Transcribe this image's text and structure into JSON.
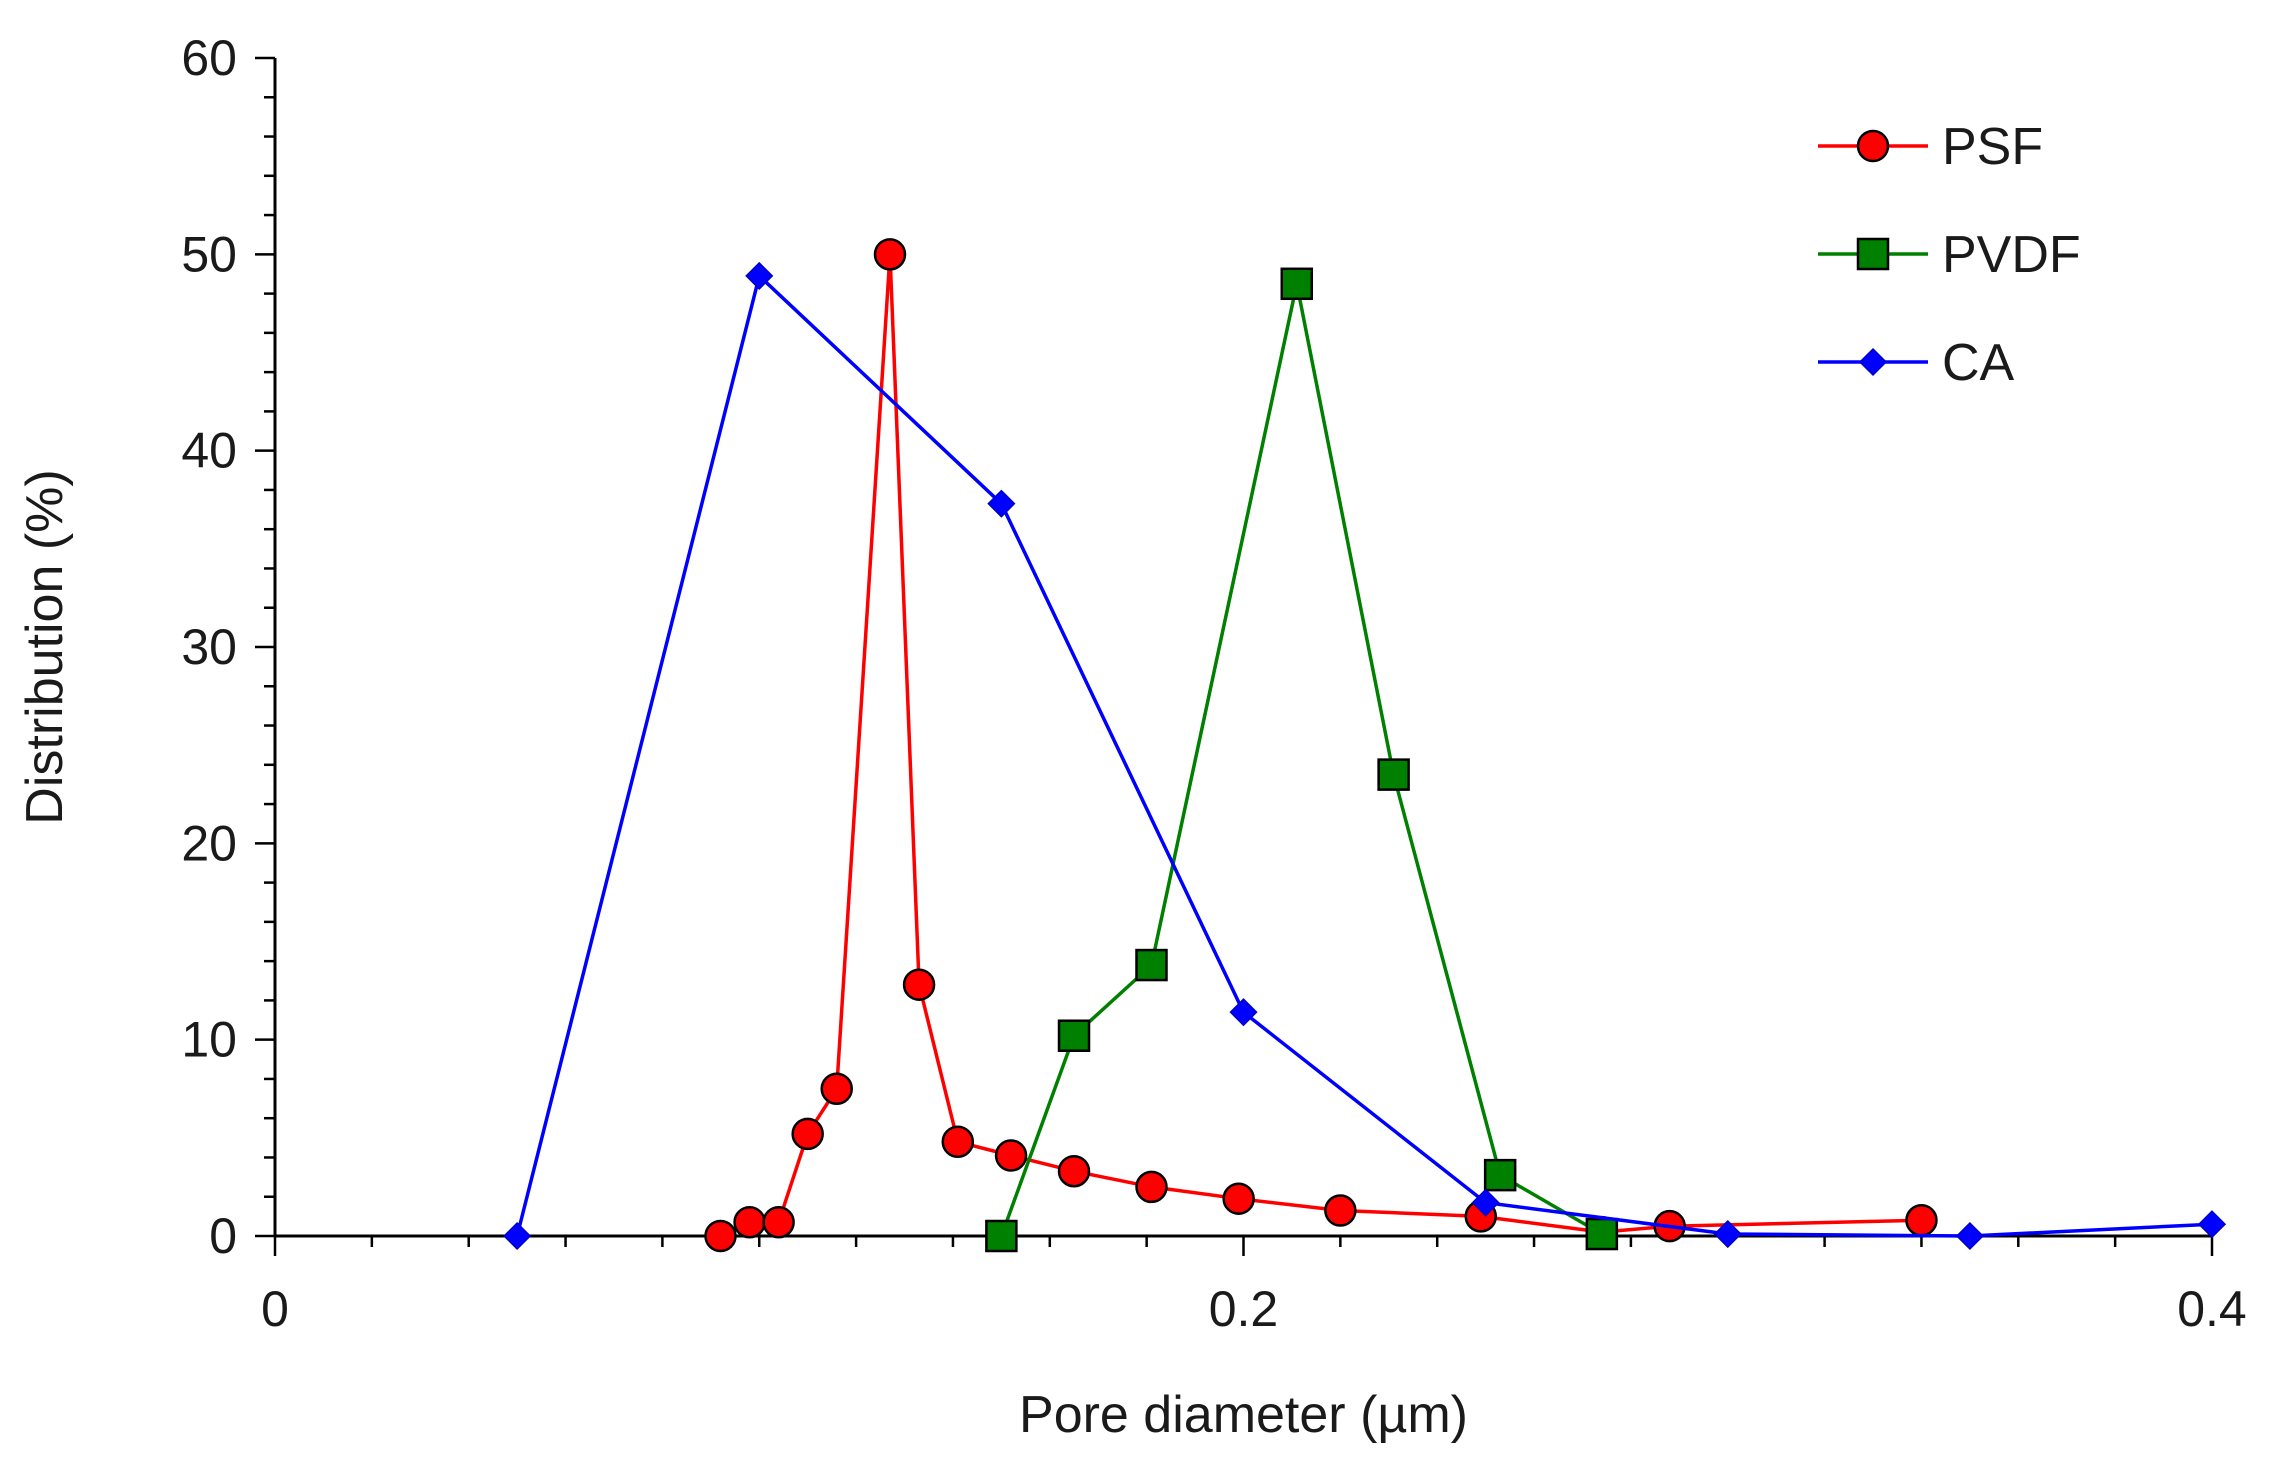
{
  "chart_data": {
    "type": "line",
    "title": "",
    "xlabel": "Pore diameter (µm)",
    "ylabel": "Distribution (%)",
    "xlim": [
      0,
      0.4
    ],
    "ylim": [
      0,
      60
    ],
    "xticks": [
      0,
      0.2,
      0.4
    ],
    "xtick_labels": [
      "0",
      "0.2",
      "0.4"
    ],
    "yticks": [
      0,
      10,
      20,
      30,
      40,
      50,
      60
    ],
    "ytick_labels": [
      "0",
      "10",
      "20",
      "30",
      "40",
      "50",
      "60"
    ],
    "grid": false,
    "legend_position": "top-right",
    "series": [
      {
        "name": "PSF",
        "color": "#ff0000",
        "marker": "circle",
        "marker_fill": "#ff0000",
        "x": [
          0.092,
          0.098,
          0.104,
          0.11,
          0.116,
          0.127,
          0.133,
          0.141,
          0.152,
          0.165,
          0.181,
          0.199,
          0.22,
          0.249,
          0.274,
          0.288,
          0.34
        ],
        "y": [
          0.0,
          0.7,
          0.7,
          5.2,
          7.5,
          50.0,
          12.8,
          4.8,
          4.1,
          3.3,
          2.5,
          1.9,
          1.3,
          1.0,
          0.2,
          0.5,
          0.8
        ]
      },
      {
        "name": "PVDF",
        "color": "#008000",
        "marker": "square",
        "marker_fill": "#008000",
        "x": [
          0.15,
          0.165,
          0.181,
          0.211,
          0.231,
          0.253,
          0.274
        ],
        "y": [
          0.0,
          10.2,
          13.8,
          48.5,
          23.5,
          3.1,
          0.1
        ]
      },
      {
        "name": "CA",
        "color": "#0000ff",
        "marker": "diamond",
        "marker_fill": "#0000ff",
        "x": [
          0.05,
          0.1,
          0.15,
          0.2,
          0.25,
          0.3,
          0.35,
          0.4
        ],
        "y": [
          0.0,
          48.9,
          37.3,
          11.4,
          1.7,
          0.1,
          0.0,
          0.6
        ]
      }
    ]
  }
}
